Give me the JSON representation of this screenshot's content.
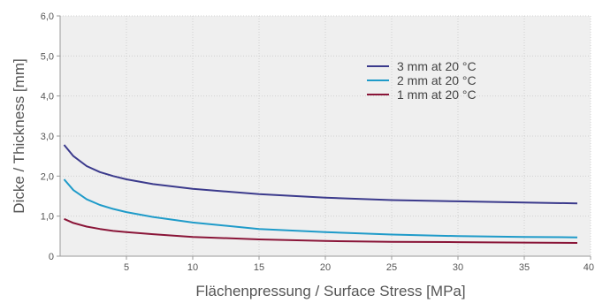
{
  "chart_data": {
    "type": "line",
    "xlabel": "Flächenpressung / Surface Stress   [MPa]",
    "ylabel": "Dicke / Thickness   [mm]",
    "xlim": [
      0,
      40
    ],
    "ylim": [
      0,
      6
    ],
    "x_ticks": [
      5,
      10,
      15,
      20,
      25,
      30,
      35,
      40
    ],
    "x_tick_labels": [
      "5",
      "10",
      "15",
      "20",
      "25",
      "30",
      "35",
      "40"
    ],
    "y_ticks": [
      0,
      1,
      2,
      3,
      4,
      5,
      6
    ],
    "y_tick_labels": [
      "0",
      "1,0",
      "2,0",
      "3,0",
      "4,0",
      "5,0",
      "6,0"
    ],
    "grid": true,
    "legend_position": "top-right",
    "series": [
      {
        "name": "3 mm at 20 °C",
        "color": "#3b3a8c",
        "x": [
          0.3,
          1,
          2,
          3,
          4,
          5,
          7,
          10,
          15,
          20,
          25,
          30,
          35,
          39
        ],
        "y": [
          2.78,
          2.5,
          2.25,
          2.1,
          2.0,
          1.92,
          1.8,
          1.68,
          1.55,
          1.46,
          1.4,
          1.37,
          1.34,
          1.32
        ]
      },
      {
        "name": "2 mm at 20 °C",
        "color": "#1f9bc9",
        "x": [
          0.3,
          1,
          2,
          3,
          4,
          5,
          7,
          10,
          15,
          20,
          25,
          30,
          35,
          39
        ],
        "y": [
          1.92,
          1.65,
          1.42,
          1.28,
          1.18,
          1.1,
          0.98,
          0.84,
          0.68,
          0.6,
          0.54,
          0.5,
          0.48,
          0.47
        ]
      },
      {
        "name": "1 mm at 20 °C",
        "color": "#8a1538",
        "x": [
          0.3,
          1,
          2,
          3,
          4,
          5,
          7,
          10,
          15,
          20,
          25,
          30,
          35,
          39
        ],
        "y": [
          0.93,
          0.83,
          0.74,
          0.68,
          0.63,
          0.6,
          0.55,
          0.48,
          0.42,
          0.38,
          0.36,
          0.35,
          0.34,
          0.33
        ]
      }
    ]
  }
}
